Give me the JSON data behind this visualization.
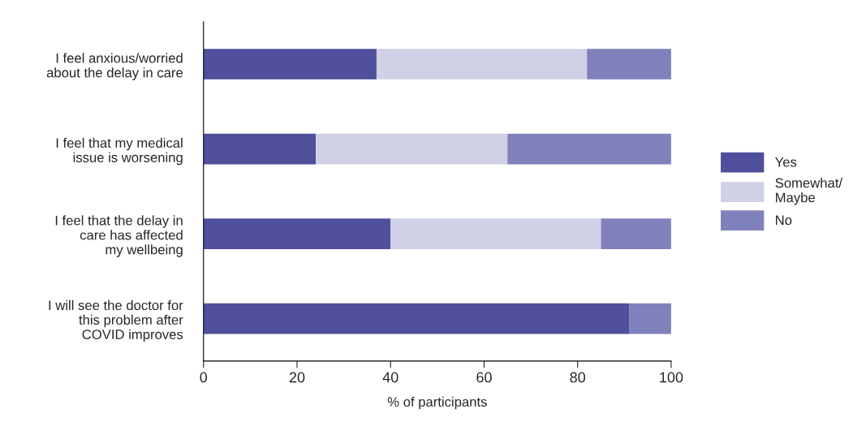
{
  "chart_data": {
    "type": "bar",
    "orientation": "horizontal",
    "stacked": true,
    "xlabel": "% of participants",
    "categories": [
      "I feel anxious/worried\nabout the delay in care",
      "I feel that my medical\nissue is worsening",
      "I feel that the delay in\ncare has affected\nmy wellbeing",
      "I will see the doctor for\nthis problem after\nCOVID improves"
    ],
    "series": [
      {
        "name": "Yes",
        "color": "#4f4f9b",
        "values": [
          37,
          24,
          40,
          91
        ]
      },
      {
        "name": "Somewhat/\nMaybe",
        "color": "#d0d0e6",
        "values": [
          45,
          41,
          45,
          0
        ]
      },
      {
        "name": "No",
        "color": "#8080bb",
        "values": [
          18,
          35,
          15,
          9
        ]
      }
    ],
    "xlim": [
      0,
      100
    ],
    "xticks": [
      0,
      20,
      40,
      60,
      80,
      100
    ],
    "grid": false,
    "legend": "right"
  }
}
